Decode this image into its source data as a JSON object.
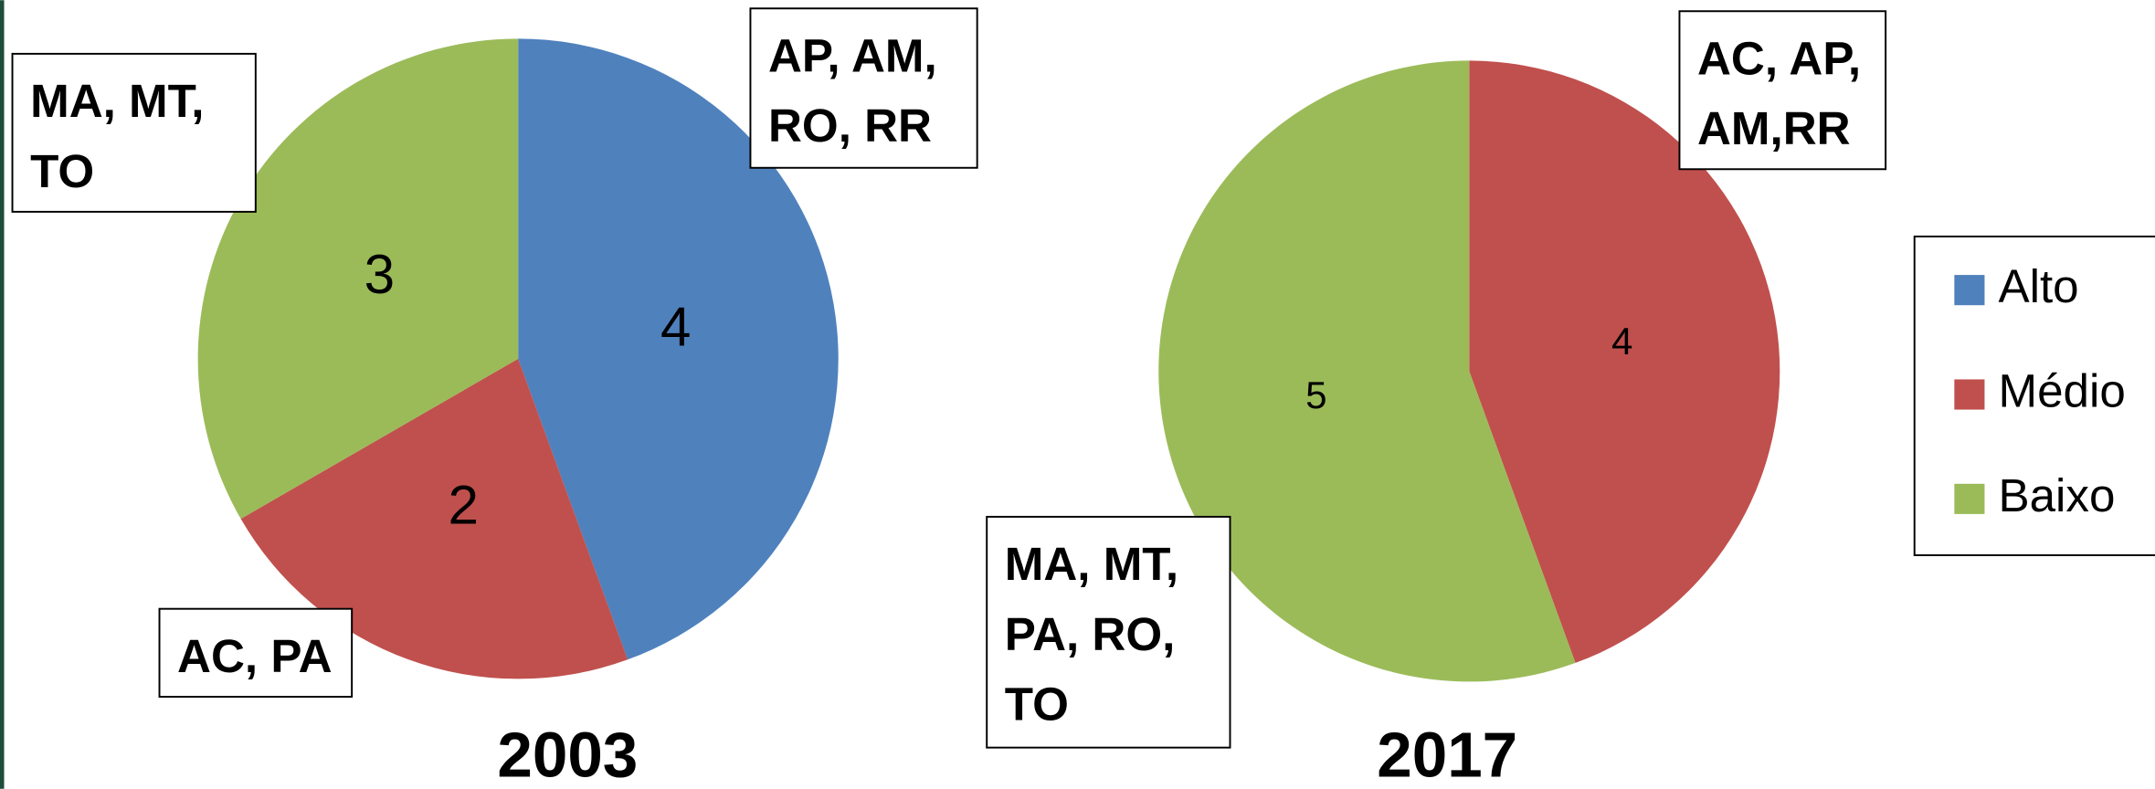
{
  "chart_data": [
    {
      "type": "pie",
      "title": "2003",
      "categories": [
        "Alto",
        "Médio",
        "Baixo"
      ],
      "values": [
        4,
        2,
        3
      ],
      "colors": [
        "#4f81bd",
        "#c0504d",
        "#9bbb59"
      ],
      "annotations": [
        [
          "AP, AM,",
          "RO, RR"
        ],
        [
          "AC, PA"
        ],
        [
          "MA, MT,",
          "TO"
        ]
      ],
      "legend": "right"
    },
    {
      "type": "pie",
      "title": "2017",
      "categories": [
        "Médio",
        "Baixo"
      ],
      "values": [
        4,
        5
      ],
      "colors": [
        "#c0504d",
        "#9bbb59"
      ],
      "annotations": [
        [
          "AC, AP,",
          "AM,RR"
        ],
        [
          "MA, MT,",
          "PA, RO,",
          "TO"
        ]
      ]
    }
  ]
}
